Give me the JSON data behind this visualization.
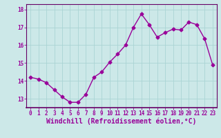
{
  "x": [
    0,
    1,
    2,
    3,
    4,
    5,
    6,
    7,
    8,
    9,
    10,
    11,
    12,
    13,
    14,
    15,
    16,
    17,
    18,
    19,
    20,
    21,
    22,
    23
  ],
  "y": [
    14.2,
    14.1,
    13.9,
    13.5,
    13.1,
    12.8,
    12.8,
    13.25,
    14.2,
    14.5,
    15.05,
    15.5,
    16.0,
    17.0,
    17.75,
    17.15,
    16.45,
    16.7,
    16.9,
    16.85,
    17.3,
    17.15,
    16.35,
    14.9
  ],
  "line_color": "#990099",
  "marker": "D",
  "markersize": 2.5,
  "bg_color": "#cce8e8",
  "grid_color": "#aad4d4",
  "xlabel": "Windchill (Refroidissement éolien,°C)",
  "ylim": [
    12.5,
    18.3
  ],
  "xlim": [
    -0.5,
    23.5
  ],
  "yticks": [
    13,
    14,
    15,
    16,
    17,
    18
  ],
  "xticks": [
    0,
    1,
    2,
    3,
    4,
    5,
    6,
    7,
    8,
    9,
    10,
    11,
    12,
    13,
    14,
    15,
    16,
    17,
    18,
    19,
    20,
    21,
    22,
    23
  ],
  "tick_fontsize": 5.5,
  "xlabel_fontsize": 7.0,
  "linewidth": 1.0,
  "spine_color": "#660066"
}
